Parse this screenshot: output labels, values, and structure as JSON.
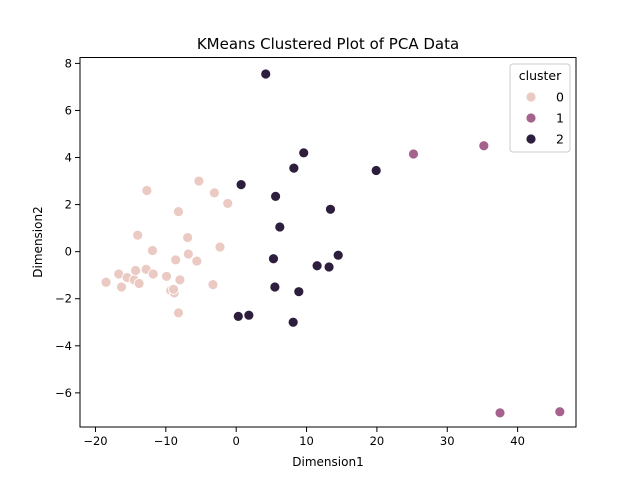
{
  "chart_data": {
    "type": "scatter",
    "title": "KMeans Clustered Plot of PCA Data",
    "xlabel": "Dimension1",
    "ylabel": "Dimension2",
    "xlim": [
      -22.2,
      48.3
    ],
    "ylim": [
      -7.45,
      8.25
    ],
    "xticks": [
      -20,
      -10,
      0,
      10,
      20,
      30,
      40
    ],
    "yticks": [
      -6,
      -4,
      -2,
      0,
      2,
      4,
      6,
      8
    ],
    "legend": {
      "title": "cluster",
      "position": "top-right",
      "entries": [
        {
          "label": "0",
          "color": "#ebcac3"
        },
        {
          "label": "1",
          "color": "#a4628c"
        },
        {
          "label": "2",
          "color": "#2d1e3e"
        }
      ]
    },
    "series": [
      {
        "name": "0",
        "color": "#ebcac3",
        "x": [
          -18.5,
          -16.7,
          -16.3,
          -15.5,
          -14.5,
          -14.3,
          -13.8,
          -12.8,
          -11.8,
          -9.9,
          -9.3,
          -8.8,
          -8.6,
          -8.2,
          -8.0,
          -8.2,
          -12.7,
          -14.0,
          -11.9,
          -6.9,
          -6.8,
          -5.6,
          -3.3,
          -2.3,
          -3.1,
          -5.3,
          -1.2,
          -8.9
        ],
        "y": [
          -1.3,
          -0.95,
          -1.5,
          -1.1,
          -1.2,
          -0.8,
          -1.35,
          -0.75,
          -0.95,
          -1.05,
          -1.65,
          -1.75,
          -0.35,
          -2.6,
          -1.2,
          1.7,
          2.6,
          0.7,
          0.05,
          0.6,
          -0.1,
          -0.4,
          -1.4,
          0.2,
          2.5,
          3.0,
          2.05,
          -1.6
        ]
      },
      {
        "name": "1",
        "color": "#a4628c",
        "x": [
          25.2,
          35.2,
          37.5,
          46.0
        ],
        "y": [
          4.15,
          4.5,
          -6.85,
          -6.8
        ]
      },
      {
        "name": "2",
        "color": "#2d1e3e",
        "x": [
          4.2,
          9.6,
          8.2,
          19.9,
          0.7,
          5.6,
          13.4,
          6.2,
          14.5,
          11.5,
          13.2,
          5.3,
          5.5,
          8.9,
          0.3,
          1.8,
          8.1
        ],
        "y": [
          7.55,
          4.2,
          3.55,
          3.45,
          2.85,
          2.35,
          1.8,
          1.05,
          -0.15,
          -0.6,
          -0.65,
          -0.3,
          -1.5,
          -1.7,
          -2.75,
          -2.7,
          -3.0
        ]
      }
    ]
  }
}
